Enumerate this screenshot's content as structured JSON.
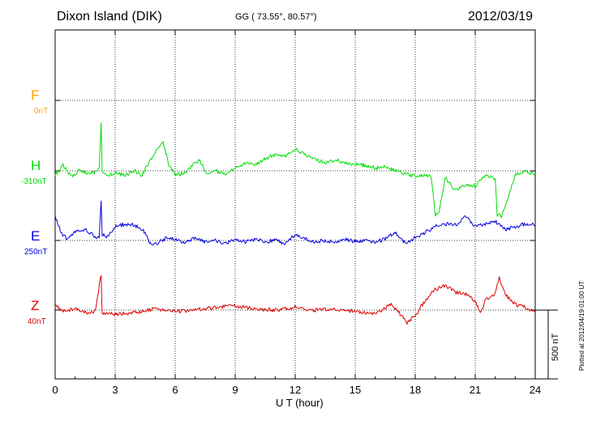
{
  "header": {
    "station": "Dixon Island (DIK)",
    "coords": "GG ( 73.55°,  80.57°)",
    "date": "2012/03/19"
  },
  "side_note": "Plotted at 2012/04/19 01:00 UT",
  "chart_data": {
    "type": "line",
    "xlabel": "U T (hour)",
    "xlim": [
      0,
      24
    ],
    "xticks": [
      0,
      3,
      6,
      9,
      12,
      15,
      18,
      21,
      24
    ],
    "scale_bar": {
      "label": "500 nT",
      "value_nT": 500
    },
    "grid": true,
    "series": [
      {
        "name": "F",
        "baseline_label": "0nT",
        "color": "#ffa500",
        "points": []
      },
      {
        "name": "H",
        "baseline_label": "-310nT",
        "color": "#00dd00",
        "points": [
          [
            0,
            -30
          ],
          [
            0.4,
            40
          ],
          [
            0.8,
            -40
          ],
          [
            1.2,
            0
          ],
          [
            1.6,
            -20
          ],
          [
            2.0,
            -10
          ],
          [
            2.2,
            10
          ],
          [
            2.3,
            360
          ],
          [
            2.35,
            -10
          ],
          [
            2.6,
            -30
          ],
          [
            3.0,
            -20
          ],
          [
            3.5,
            -30
          ],
          [
            4.0,
            0
          ],
          [
            4.3,
            -40
          ],
          [
            4.6,
            40
          ],
          [
            5.0,
            140
          ],
          [
            5.4,
            200
          ],
          [
            5.7,
            40
          ],
          [
            6.0,
            -30
          ],
          [
            6.4,
            -20
          ],
          [
            6.8,
            30
          ],
          [
            7.2,
            80
          ],
          [
            7.6,
            -20
          ],
          [
            8.0,
            0
          ],
          [
            8.5,
            -30
          ],
          [
            9.0,
            20
          ],
          [
            9.5,
            60
          ],
          [
            10.0,
            40
          ],
          [
            10.5,
            90
          ],
          [
            11.0,
            120
          ],
          [
            11.5,
            100
          ],
          [
            12.0,
            160
          ],
          [
            12.5,
            120
          ],
          [
            13.0,
            80
          ],
          [
            13.5,
            60
          ],
          [
            14.0,
            80
          ],
          [
            14.5,
            60
          ],
          [
            15.0,
            50
          ],
          [
            15.5,
            40
          ],
          [
            16.0,
            20
          ],
          [
            16.5,
            30
          ],
          [
            17.0,
            0
          ],
          [
            17.5,
            -20
          ],
          [
            18.0,
            -40
          ],
          [
            18.5,
            -30
          ],
          [
            18.8,
            -40
          ],
          [
            19.0,
            -320
          ],
          [
            19.2,
            -300
          ],
          [
            19.5,
            -50
          ],
          [
            20.0,
            -140
          ],
          [
            20.5,
            -110
          ],
          [
            21.0,
            -110
          ],
          [
            21.5,
            -30
          ],
          [
            22.0,
            -60
          ],
          [
            22.1,
            -320
          ],
          [
            22.3,
            -330
          ],
          [
            22.6,
            -220
          ],
          [
            23.0,
            -30
          ],
          [
            23.5,
            0
          ],
          [
            24,
            -30
          ]
        ]
      },
      {
        "name": "E",
        "baseline_label": "250nT",
        "color": "#0000dd",
        "points": [
          [
            0,
            170
          ],
          [
            0.3,
            60
          ],
          [
            0.6,
            10
          ],
          [
            1.0,
            60
          ],
          [
            1.5,
            80
          ],
          [
            2.0,
            30
          ],
          [
            2.2,
            20
          ],
          [
            2.3,
            300
          ],
          [
            2.35,
            40
          ],
          [
            2.6,
            30
          ],
          [
            3.0,
            100
          ],
          [
            3.5,
            120
          ],
          [
            4.0,
            110
          ],
          [
            4.5,
            60
          ],
          [
            4.8,
            -40
          ],
          [
            5.2,
            -10
          ],
          [
            5.6,
            20
          ],
          [
            6.0,
            10
          ],
          [
            6.5,
            -20
          ],
          [
            7.0,
            20
          ],
          [
            7.5,
            -10
          ],
          [
            8.0,
            0
          ],
          [
            8.5,
            -20
          ],
          [
            9.0,
            0
          ],
          [
            9.5,
            -10
          ],
          [
            10.0,
            10
          ],
          [
            10.5,
            -10
          ],
          [
            11.0,
            0
          ],
          [
            11.5,
            -20
          ],
          [
            12.0,
            40
          ],
          [
            12.5,
            10
          ],
          [
            13.0,
            -10
          ],
          [
            13.5,
            0
          ],
          [
            14.0,
            -10
          ],
          [
            14.5,
            10
          ],
          [
            15.0,
            -10
          ],
          [
            15.5,
            0
          ],
          [
            16.0,
            -10
          ],
          [
            16.5,
            10
          ],
          [
            17.0,
            60
          ],
          [
            17.5,
            -20
          ],
          [
            18.0,
            20
          ],
          [
            18.5,
            60
          ],
          [
            19.0,
            100
          ],
          [
            19.5,
            120
          ],
          [
            20.0,
            110
          ],
          [
            20.5,
            180
          ],
          [
            21.0,
            100
          ],
          [
            21.5,
            120
          ],
          [
            22.0,
            140
          ],
          [
            22.5,
            80
          ],
          [
            23.0,
            100
          ],
          [
            23.5,
            120
          ],
          [
            24,
            110
          ]
        ]
      },
      {
        "name": "Z",
        "baseline_label": "40nT",
        "color": "#dd0000",
        "points": [
          [
            0,
            30
          ],
          [
            0.5,
            -10
          ],
          [
            1.0,
            10
          ],
          [
            1.5,
            -20
          ],
          [
            2.0,
            -10
          ],
          [
            2.3,
            260
          ],
          [
            2.35,
            -20
          ],
          [
            3.0,
            -30
          ],
          [
            4.0,
            -20
          ],
          [
            5.0,
            10
          ],
          [
            6.0,
            -10
          ],
          [
            7.0,
            0
          ],
          [
            8.0,
            20
          ],
          [
            9.0,
            30
          ],
          [
            10.0,
            10
          ],
          [
            11.0,
            0
          ],
          [
            12.0,
            20
          ],
          [
            13.0,
            0
          ],
          [
            14.0,
            10
          ],
          [
            15.0,
            -10
          ],
          [
            16.0,
            -30
          ],
          [
            16.8,
            40
          ],
          [
            17.2,
            -20
          ],
          [
            17.6,
            -90
          ],
          [
            18.0,
            -40
          ],
          [
            18.5,
            70
          ],
          [
            19.0,
            150
          ],
          [
            19.5,
            180
          ],
          [
            20.0,
            130
          ],
          [
            20.5,
            120
          ],
          [
            21.0,
            60
          ],
          [
            21.3,
            -20
          ],
          [
            21.5,
            70
          ],
          [
            22.0,
            120
          ],
          [
            22.2,
            230
          ],
          [
            22.5,
            110
          ],
          [
            23.0,
            40
          ],
          [
            23.5,
            20
          ],
          [
            24,
            -20
          ]
        ]
      }
    ]
  }
}
